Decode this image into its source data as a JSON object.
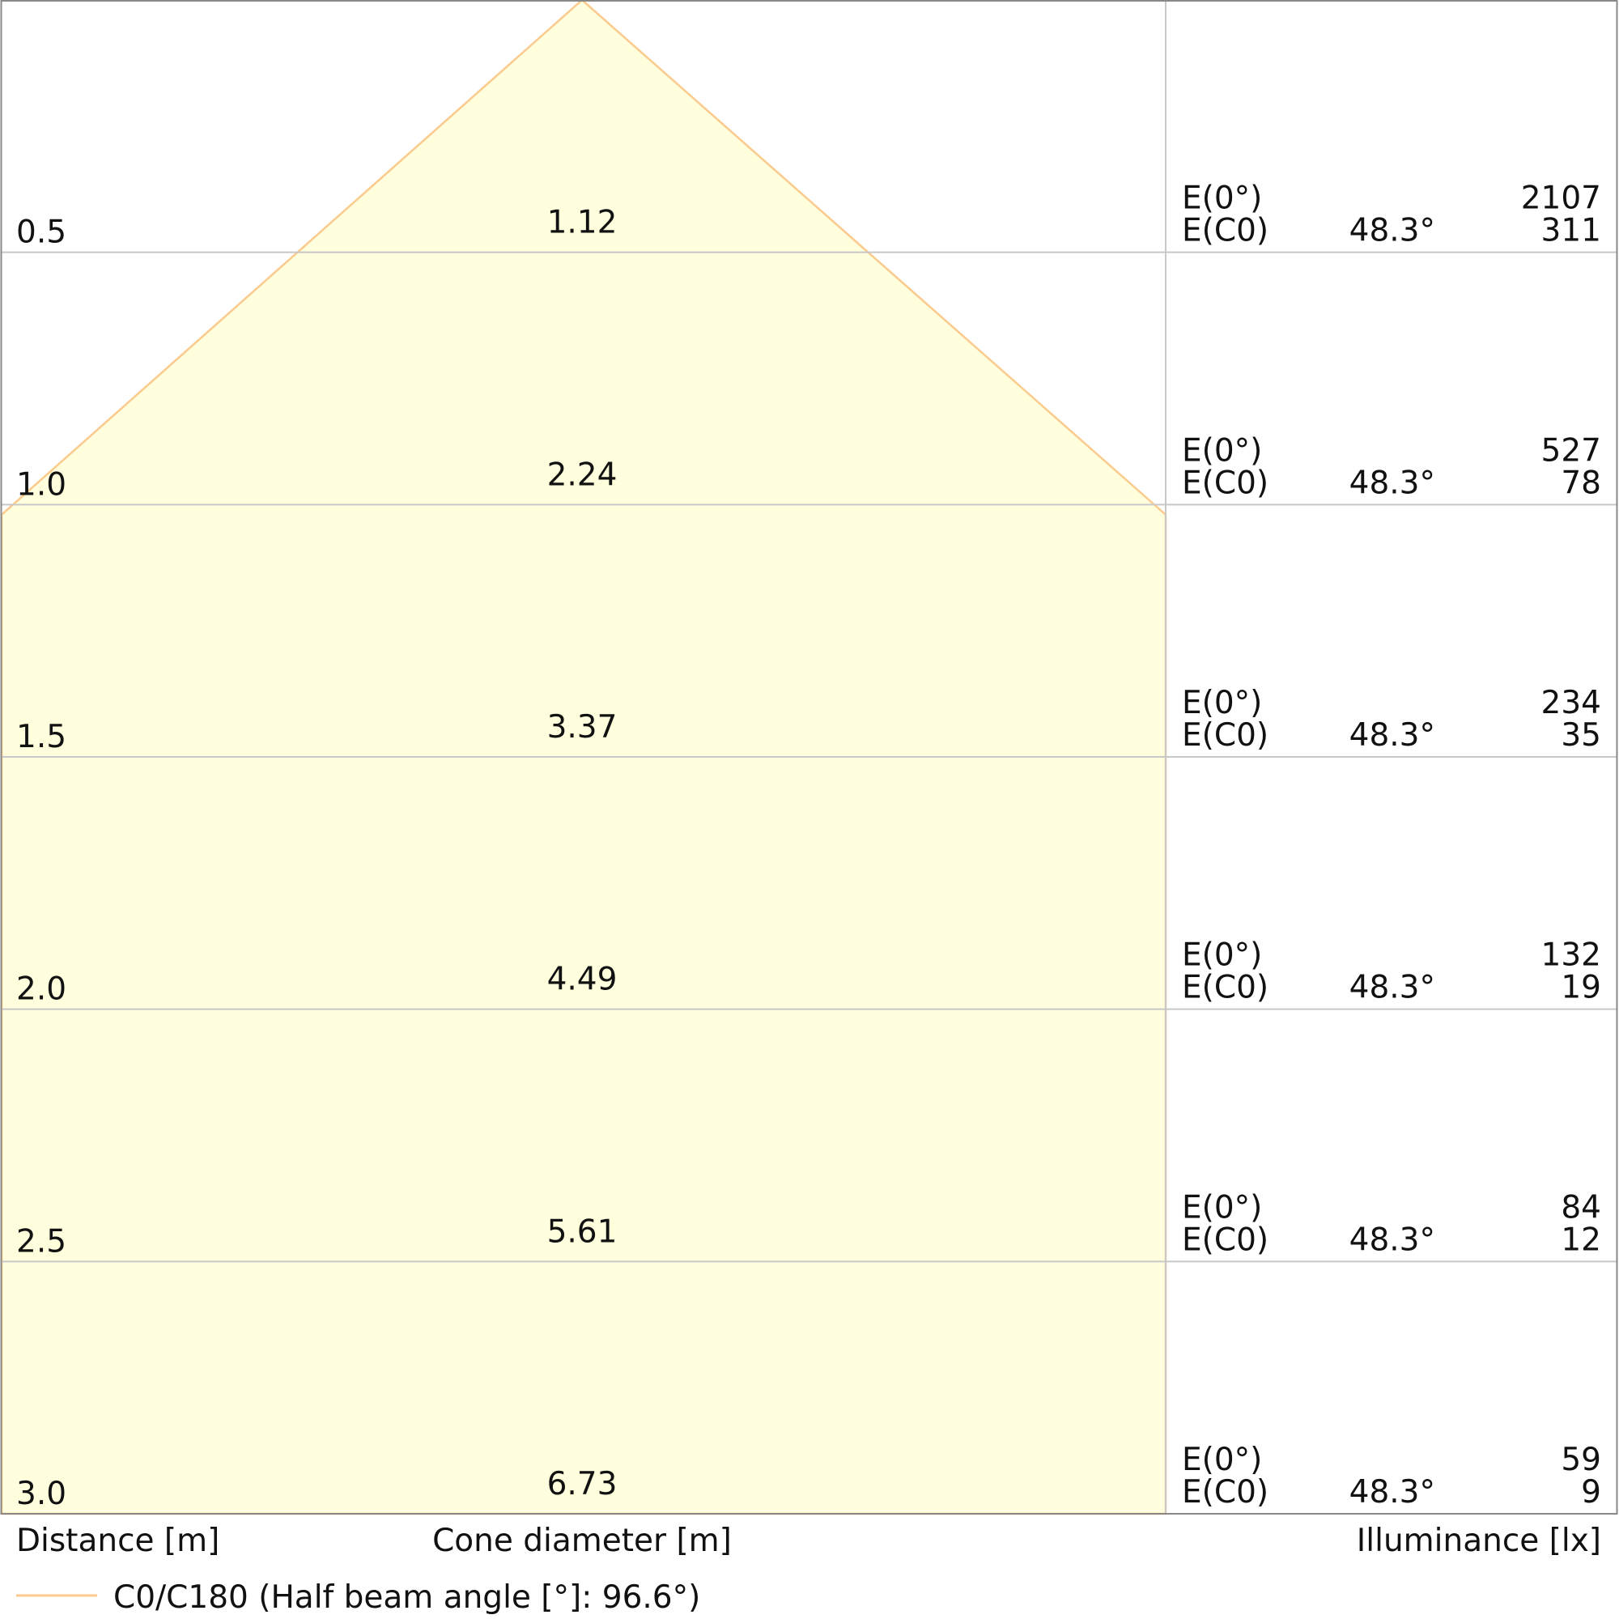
{
  "chart_data": {
    "type": "area",
    "title": "",
    "xlabel": "Cone diameter [m]",
    "ylabel": "Distance [m]",
    "illuminance_label": "Illuminance [lx]",
    "legend": {
      "label": "C0/C180 (Half beam angle [°]: 96.6°)",
      "color": "#fbca8c",
      "placement": "bottom-left"
    },
    "fill_color": "#fffedd",
    "grid_color": "#c8c8c8",
    "ylim": [
      0,
      3.0
    ],
    "rows": [
      {
        "distance": "0.5",
        "diameter": "1.12",
        "e0_label": "E(0°)",
        "ec0_label": "E(C0)",
        "angle": "48.3°",
        "e0": "2107",
        "ec0": "311"
      },
      {
        "distance": "1.0",
        "diameter": "2.24",
        "e0_label": "E(0°)",
        "ec0_label": "E(C0)",
        "angle": "48.3°",
        "e0": "527",
        "ec0": "78"
      },
      {
        "distance": "1.5",
        "diameter": "3.37",
        "e0_label": "E(0°)",
        "ec0_label": "E(C0)",
        "angle": "48.3°",
        "e0": "234",
        "ec0": "35"
      },
      {
        "distance": "2.0",
        "diameter": "4.49",
        "e0_label": "E(0°)",
        "ec0_label": "E(C0)",
        "angle": "48.3°",
        "e0": "132",
        "ec0": "19"
      },
      {
        "distance": "2.5",
        "diameter": "5.61",
        "e0_label": "E(0°)",
        "ec0_label": "E(C0)",
        "angle": "48.3°",
        "e0": "84",
        "ec0": "12"
      },
      {
        "distance": "3.0",
        "diameter": "6.73",
        "e0_label": "E(0°)",
        "ec0_label": "E(C0)",
        "angle": "48.3°",
        "e0": "59",
        "ec0": "9"
      }
    ],
    "cone_full_width_distance": 1.02
  }
}
